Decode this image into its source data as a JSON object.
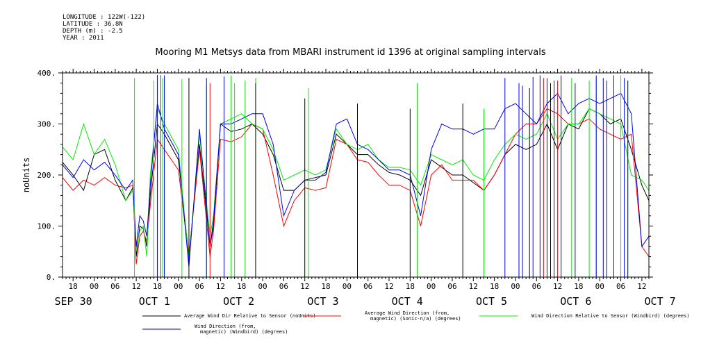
{
  "header": {
    "longitude": "LONGITUDE : 122W(-122)",
    "latitude": "LATITUDE : 36.8N",
    "depth": "DEPTH (m) : -2.5",
    "year": "YEAR : 2011",
    "title": "Mooring M1 Metsys data from MBARI instrument id 1396 at original sampling intervals"
  },
  "chart_data": {
    "type": "line",
    "ylabel": "noUnits",
    "ylim": [
      0,
      400
    ],
    "y_ticks": [
      "0.",
      "100.",
      "200.",
      "300.",
      "400."
    ],
    "x_unit": "hours since 2011-09-30 00:00",
    "xlim": [
      -9,
      158
    ],
    "hour_labels": [
      "18",
      "00",
      "06",
      "12",
      "18",
      "00",
      "06",
      "12",
      "18",
      "00",
      "06",
      "12",
      "18",
      "00",
      "06",
      "12",
      "18",
      "00",
      "06",
      "12",
      "18",
      "00",
      "06",
      "12",
      "18",
      "00",
      "06",
      "12"
    ],
    "day_labels": [
      "SEP 30",
      "OCT  1",
      "OCT  2",
      "OCT  3",
      "OCT  4",
      "OCT  5",
      "OCT  6",
      "OCT  7"
    ],
    "legend_lines": [
      {
        "color": "#000000",
        "line1": "Average Wind Dir Relative to Sensor (noUnits)",
        "line2": ""
      },
      {
        "color": "#ff0000",
        "line1": "Average Wind Direction (from,",
        "line2": "magnetic) (Sonic-n/a) (degrees)"
      },
      {
        "color": "#00ee00",
        "line1": "Wind Direction Relative to Sensor (Windbird) (degrees)",
        "line2": ""
      },
      {
        "color": "#0000ee",
        "line1": "Wind Direction (from,",
        "line2": "magnetic) (Windbird) (degrees)"
      }
    ],
    "series": [
      {
        "name": "Average Wind Dir Relative to Sensor (noUnits)",
        "color": "#000000",
        "x": [
          -9,
          -6,
          -3,
          0,
          3,
          6,
          9,
          11,
          12,
          13,
          14,
          15,
          16,
          18,
          20,
          24,
          27,
          30,
          33,
          34,
          36,
          39,
          42,
          45,
          48,
          51,
          54,
          57,
          60,
          63,
          66,
          69,
          72,
          75,
          78,
          81,
          84,
          87,
          90,
          93,
          96,
          99,
          102,
          105,
          108,
          111,
          114,
          117,
          120,
          123,
          126,
          129,
          132,
          135,
          138,
          141,
          144,
          147,
          150,
          153,
          156,
          158
        ],
        "y": [
          225,
          200,
          170,
          240,
          250,
          190,
          150,
          175,
          40,
          100,
          95,
          60,
          160,
          300,
          280,
          230,
          40,
          260,
          60,
          100,
          300,
          285,
          290,
          300,
          280,
          240,
          170,
          170,
          190,
          195,
          200,
          280,
          260,
          240,
          240,
          220,
          205,
          200,
          190,
          160,
          230,
          215,
          200,
          200,
          185,
          170,
          200,
          240,
          260,
          250,
          260,
          300,
          250,
          300,
          290,
          330,
          320,
          300,
          310,
          250,
          180,
          150
        ]
      },
      {
        "name": "Average Wind Direction (from, magnetic) (Sonic-n/a) (degrees)",
        "color": "#ff0000",
        "x": [
          -9,
          -6,
          -3,
          0,
          3,
          6,
          9,
          11,
          12,
          13,
          14,
          15,
          16,
          18,
          20,
          24,
          27,
          30,
          33,
          34,
          36,
          39,
          42,
          45,
          48,
          51,
          54,
          57,
          60,
          63,
          66,
          69,
          72,
          75,
          78,
          81,
          84,
          87,
          90,
          93,
          96,
          99,
          102,
          105,
          108,
          111,
          114,
          117,
          120,
          123,
          126,
          129,
          132,
          135,
          138,
          141,
          144,
          147,
          150,
          153,
          156,
          158
        ],
        "y": [
          195,
          170,
          190,
          180,
          195,
          180,
          175,
          180,
          25,
          80,
          90,
          70,
          140,
          270,
          250,
          210,
          40,
          250,
          40,
          90,
          270,
          265,
          275,
          300,
          290,
          200,
          100,
          150,
          175,
          170,
          175,
          270,
          260,
          230,
          225,
          200,
          180,
          180,
          170,
          100,
          200,
          220,
          190,
          190,
          190,
          170,
          200,
          240,
          280,
          300,
          300,
          330,
          320,
          300,
          300,
          310,
          290,
          280,
          270,
          280,
          60,
          40
        ]
      },
      {
        "name": "Wind Direction Relative to Sensor (Windbird) (degrees)",
        "color": "#00ee00",
        "x": [
          -9,
          -6,
          -3,
          0,
          3,
          6,
          9,
          11,
          12,
          13,
          14,
          15,
          16,
          18,
          20,
          24,
          27,
          30,
          33,
          34,
          36,
          39,
          42,
          45,
          48,
          51,
          54,
          57,
          60,
          63,
          66,
          69,
          72,
          75,
          78,
          81,
          84,
          87,
          90,
          93,
          96,
          99,
          102,
          105,
          108,
          111,
          114,
          117,
          120,
          123,
          126,
          129,
          132,
          135,
          138,
          141,
          144,
          147,
          150,
          153,
          156,
          158
        ],
        "y": [
          255,
          230,
          300,
          240,
          270,
          220,
          150,
          170,
          55,
          90,
          100,
          40,
          200,
          330,
          300,
          250,
          30,
          280,
          80,
          120,
          300,
          310,
          320,
          300,
          290,
          250,
          190,
          200,
          210,
          200,
          210,
          290,
          260,
          250,
          260,
          230,
          215,
          215,
          210,
          180,
          240,
          230,
          220,
          230,
          200,
          190,
          230,
          260,
          280,
          270,
          280,
          320,
          270,
          300,
          300,
          330,
          320,
          310,
          300,
          200,
          190,
          170
        ]
      },
      {
        "name": "Wind Direction (from, magnetic) (Windbird) (degrees)",
        "color": "#0000ee",
        "x": [
          -9,
          -6,
          -3,
          0,
          3,
          6,
          9,
          11,
          12,
          13,
          14,
          15,
          16,
          18,
          20,
          24,
          27,
          30,
          33,
          34,
          36,
          39,
          42,
          45,
          48,
          51,
          54,
          57,
          60,
          63,
          66,
          69,
          72,
          75,
          78,
          81,
          84,
          87,
          90,
          93,
          96,
          99,
          102,
          105,
          108,
          111,
          114,
          117,
          120,
          123,
          126,
          129,
          132,
          135,
          138,
          141,
          144,
          147,
          150,
          153,
          156,
          158
        ],
        "y": [
          220,
          195,
          230,
          210,
          225,
          200,
          170,
          190,
          60,
          120,
          110,
          80,
          180,
          340,
          290,
          240,
          20,
          290,
          60,
          110,
          300,
          300,
          310,
          320,
          320,
          260,
          120,
          170,
          190,
          190,
          205,
          300,
          310,
          260,
          250,
          230,
          210,
          210,
          200,
          120,
          250,
          300,
          290,
          290,
          280,
          290,
          290,
          330,
          340,
          320,
          300,
          340,
          360,
          320,
          340,
          350,
          340,
          350,
          360,
          320,
          60,
          80
        ]
      }
    ],
    "spikes": [
      {
        "color": "#00ee00",
        "x": [
          11.5,
          17,
          19,
          19.5,
          25,
          32,
          39,
          40,
          43,
          46,
          61,
          92,
          111,
          136,
          141,
          143,
          150,
          152
        ],
        "y": [
          390,
          385,
          396,
          390,
          388,
          375,
          395,
          380,
          385,
          390,
          370,
          380,
          330,
          390,
          385,
          390,
          395,
          385
        ]
      },
      {
        "color": "#0000ee",
        "x": [
          18,
          20,
          32,
          37,
          117,
          121,
          122,
          125,
          127,
          129,
          131,
          133,
          137,
          143,
          145,
          146,
          148,
          151,
          152
        ],
        "y": [
          396,
          395,
          390,
          393,
          390,
          380,
          375,
          392,
          395,
          390,
          385,
          395,
          380,
          395,
          390,
          385,
          395,
          390,
          385
        ]
      },
      {
        "color": "#ff0000",
        "x": [
          19,
          33,
          128,
          132
        ],
        "y": [
          395,
          380,
          390,
          385
        ]
      },
      {
        "color": "#000000",
        "x": [
          27,
          46,
          60,
          75,
          90,
          105,
          124,
          130
        ],
        "y": [
          390,
          380,
          350,
          340,
          330,
          340,
          370,
          380
        ]
      }
    ]
  }
}
